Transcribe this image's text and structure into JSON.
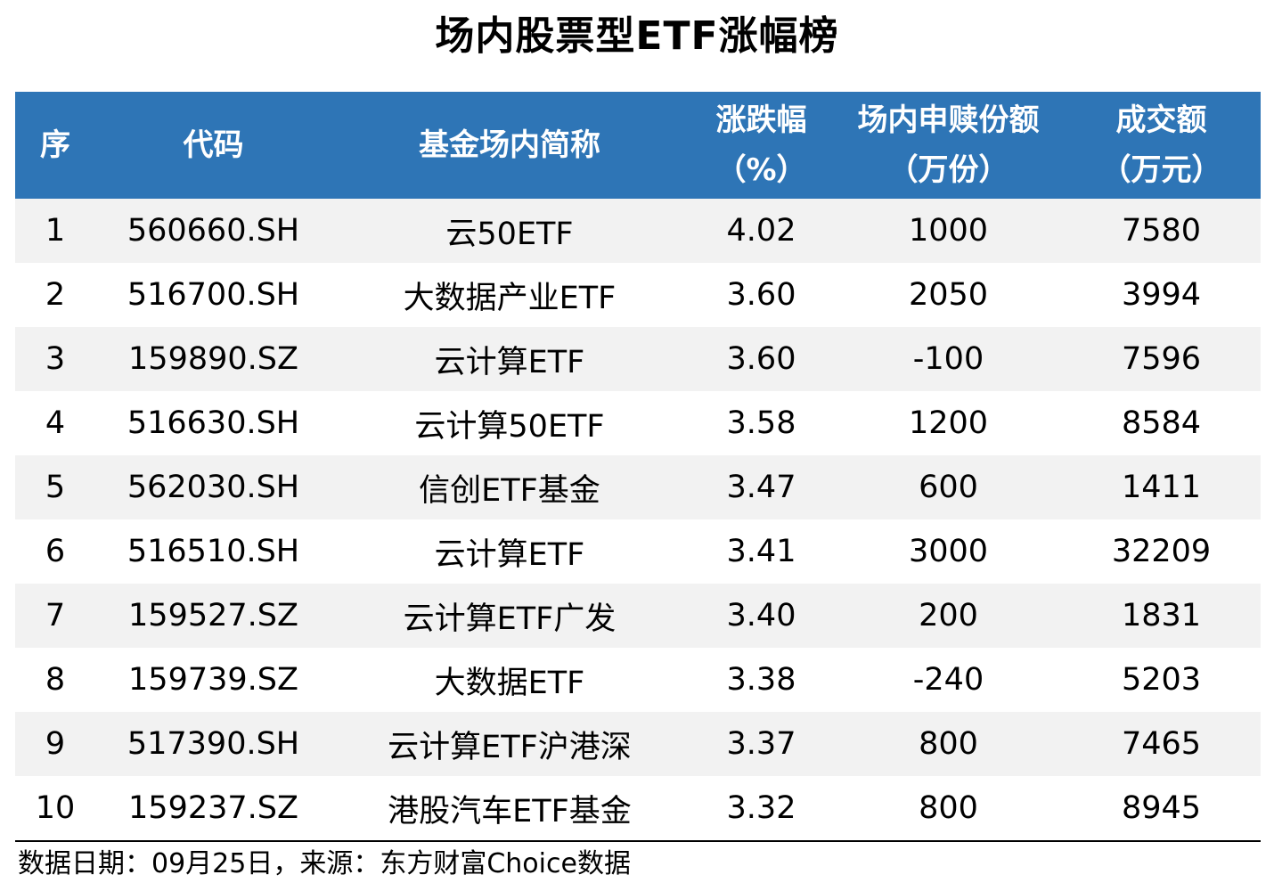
{
  "title": "场内股票型ETF涨幅榜",
  "table": {
    "headers": [
      {
        "line1": "序",
        "line2": ""
      },
      {
        "line1": "代码",
        "line2": ""
      },
      {
        "line1": "基金场内简称",
        "line2": ""
      },
      {
        "line1": "涨跌幅",
        "line2": "（%）"
      },
      {
        "line1": "场内申赎份额",
        "line2": "（万份）"
      },
      {
        "line1": "成交额",
        "line2": "（万元）"
      }
    ],
    "rows": [
      {
        "rank": "1",
        "code": "560660.SH",
        "name": "云50ETF",
        "change_pct": "4.02",
        "net_units": "1000",
        "turnover": "7580"
      },
      {
        "rank": "2",
        "code": "516700.SH",
        "name": "大数据产业ETF",
        "change_pct": "3.60",
        "net_units": "2050",
        "turnover": "3994"
      },
      {
        "rank": "3",
        "code": "159890.SZ",
        "name": "云计算ETF",
        "change_pct": "3.60",
        "net_units": "-100",
        "turnover": "7596"
      },
      {
        "rank": "4",
        "code": "516630.SH",
        "name": "云计算50ETF",
        "change_pct": "3.58",
        "net_units": "1200",
        "turnover": "8584"
      },
      {
        "rank": "5",
        "code": "562030.SH",
        "name": "信创ETF基金",
        "change_pct": "3.47",
        "net_units": "600",
        "turnover": "1411"
      },
      {
        "rank": "6",
        "code": "516510.SH",
        "name": "云计算ETF",
        "change_pct": "3.41",
        "net_units": "3000",
        "turnover": "32209"
      },
      {
        "rank": "7",
        "code": "159527.SZ",
        "name": "云计算ETF广发",
        "change_pct": "3.40",
        "net_units": "200",
        "turnover": "1831"
      },
      {
        "rank": "8",
        "code": "159739.SZ",
        "name": "大数据ETF",
        "change_pct": "3.38",
        "net_units": "-240",
        "turnover": "5203"
      },
      {
        "rank": "9",
        "code": "517390.SH",
        "name": "云计算ETF沪港深",
        "change_pct": "3.37",
        "net_units": "800",
        "turnover": "7465"
      },
      {
        "rank": "10",
        "code": "159237.SZ",
        "name": "港股汽车ETF基金",
        "change_pct": "3.32",
        "net_units": "800",
        "turnover": "8945"
      }
    ]
  },
  "footer": "数据日期：09月25日，来源：东方财富Choice数据",
  "colors": {
    "header_bg": "#2e75b6",
    "header_text": "#ffffff",
    "stripe_bg": "#f2f2f2"
  }
}
